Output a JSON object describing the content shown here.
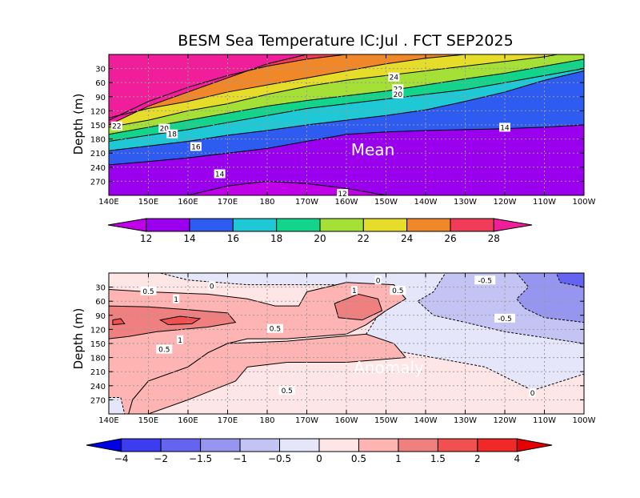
{
  "title": "BESM Sea Temperature  IC:Jul . FCT SEP2025",
  "chart_data": [
    {
      "type": "heatmap",
      "name": "Mean",
      "panel_label": "Mean",
      "ylabel": "Depth (m)",
      "xlabel": "",
      "x_tick_labels": [
        "140E",
        "150E",
        "160E",
        "170E",
        "180",
        "170W",
        "160W",
        "150W",
        "140W",
        "130W",
        "120W",
        "110W",
        "100W"
      ],
      "y_tick_labels": [
        "30",
        "60",
        "90",
        "120",
        "150",
        "180",
        "210",
        "240",
        "270"
      ],
      "xlim": [
        140,
        260
      ],
      "ylim": [
        300,
        0
      ],
      "colorbar": {
        "ticks": [
          "12",
          "14",
          "16",
          "18",
          "20",
          "22",
          "24",
          "26",
          "28"
        ],
        "levels": [
          12,
          14,
          16,
          18,
          20,
          22,
          24,
          26,
          28
        ],
        "colors": [
          "#c000e8",
          "#9b00ee",
          "#2f5cf0",
          "#1ec8d4",
          "#12d48a",
          "#a4e036",
          "#e6dc2a",
          "#f0882a",
          "#f03c58",
          "#f01e9b"
        ]
      },
      "contour_labels": [
        {
          "text": "24",
          "lon": 212,
          "depth": 48
        },
        {
          "text": "22",
          "lon": 213,
          "depth": 73
        },
        {
          "text": "20",
          "lon": 213,
          "depth": 84
        },
        {
          "text": "22",
          "lon": 142,
          "depth": 152
        },
        {
          "text": "20",
          "lon": 154,
          "depth": 157
        },
        {
          "text": "18",
          "lon": 156,
          "depth": 169
        },
        {
          "text": "16",
          "lon": 162,
          "depth": 196
        },
        {
          "text": "14",
          "lon": 168,
          "depth": 254
        },
        {
          "text": "14",
          "lon": 240,
          "depth": 155
        },
        {
          "text": "12",
          "lon": 199,
          "depth": 296
        }
      ],
      "bands": [
        {
          "temp": 28,
          "color": "#f01e9b",
          "depths": [
            150,
            110,
            80,
            50,
            20,
            0,
            -10,
            -10,
            -10,
            -10,
            -10,
            -10,
            -10
          ]
        },
        {
          "temp": 26,
          "color": "#f03c58",
          "depths": [
            140,
            100,
            70,
            45,
            25,
            10,
            0,
            -10,
            -10,
            -10,
            -10,
            -10,
            -10
          ]
        },
        {
          "temp": 24,
          "color": "#f0882a",
          "depths": [
            135,
            115,
            100,
            80,
            65,
            50,
            35,
            20,
            8,
            0,
            -10,
            -10,
            -10
          ]
        },
        {
          "temp": 22,
          "color": "#e6dc2a",
          "depths": [
            155,
            140,
            120,
            105,
            85,
            68,
            55,
            45,
            35,
            25,
            15,
            5,
            -10
          ]
        },
        {
          "temp": 20,
          "color": "#a4e036",
          "depths": [
            170,
            155,
            140,
            125,
            110,
            98,
            88,
            78,
            65,
            52,
            40,
            25,
            10
          ]
        },
        {
          "temp": 18,
          "color": "#12d48a",
          "depths": [
            185,
            172,
            160,
            145,
            130,
            115,
            105,
            95,
            85,
            75,
            60,
            45,
            30
          ]
        },
        {
          "temp": 16,
          "color": "#1ec8d4",
          "depths": [
            205,
            195,
            185,
            172,
            162,
            150,
            140,
            130,
            118,
            100,
            80,
            55,
            35
          ]
        },
        {
          "temp": 14,
          "color": "#2f5cf0",
          "depths": [
            235,
            228,
            220,
            210,
            200,
            185,
            170,
            165,
            162,
            160,
            158,
            155,
            150
          ]
        },
        {
          "temp": 12,
          "color": "#9b00ee",
          "depths": [
            300,
            300,
            300,
            280,
            270,
            275,
            285,
            300,
            300,
            300,
            300,
            300,
            300
          ]
        }
      ],
      "deepest_color": "#c000e8"
    },
    {
      "type": "heatmap",
      "name": "Anomaly",
      "panel_label": "Anomaly",
      "ylabel": "Depth (m)",
      "xlabel": "",
      "x_tick_labels": [
        "140E",
        "150E",
        "160E",
        "170E",
        "180",
        "170W",
        "160W",
        "150W",
        "140W",
        "130W",
        "120W",
        "110W",
        "100W"
      ],
      "y_tick_labels": [
        "30",
        "60",
        "90",
        "120",
        "150",
        "180",
        "210",
        "240",
        "270"
      ],
      "xlim": [
        140,
        260
      ],
      "ylim": [
        300,
        0
      ],
      "colorbar": {
        "ticks": [
          "−4",
          "−2",
          "−1.5",
          "−1",
          "−0.5",
          "0",
          "0.5",
          "1",
          "1.5",
          "2",
          "4"
        ],
        "levels": [
          -4,
          -2,
          -1.5,
          -1,
          -0.5,
          0,
          0.5,
          1,
          1.5,
          2,
          4
        ],
        "colors": [
          "#0000e6",
          "#3c3cf0",
          "#6464f0",
          "#9696f0",
          "#c4c4f4",
          "#e6e6fa",
          "#ffe6e6",
          "#ffb4b4",
          "#f08080",
          "#f05050",
          "#f02828",
          "#e60000"
        ]
      },
      "contour_labels": [
        {
          "text": "0",
          "lon": 208,
          "depth": 15
        },
        {
          "text": "0",
          "lon": 166,
          "depth": 27
        },
        {
          "text": "-0.5",
          "lon": 235,
          "depth": 15
        },
        {
          "text": "0.5",
          "lon": 150,
          "depth": 38
        },
        {
          "text": "1",
          "lon": 157,
          "depth": 55
        },
        {
          "text": "1",
          "lon": 202,
          "depth": 37
        },
        {
          "text": "0.5",
          "lon": 213,
          "depth": 37
        },
        {
          "text": "-0.5",
          "lon": 240,
          "depth": 96
        },
        {
          "text": "0.5",
          "lon": 182,
          "depth": 118
        },
        {
          "text": "1",
          "lon": 158,
          "depth": 142
        },
        {
          "text": "0.5",
          "lon": 154,
          "depth": 162
        },
        {
          "text": "0.5",
          "lon": 185,
          "depth": 250
        },
        {
          "text": "0",
          "lon": 247,
          "depth": 255
        }
      ],
      "regions": [
        {
          "value": 0.25,
          "color": "#ffe6e6",
          "poly": [
            [
              140,
              0
            ],
            [
              260,
              0
            ],
            [
              260,
              300
            ],
            [
              140,
              300
            ]
          ]
        },
        {
          "value": -0.25,
          "color": "#e6e6fa",
          "poly": [
            [
              153,
              0
            ],
            [
              260,
              0
            ],
            [
              260,
              215
            ],
            [
              247,
              250
            ],
            [
              235,
              200
            ],
            [
              222,
              180
            ],
            [
              212,
              165
            ],
            [
              205,
              130
            ],
            [
              208,
              90
            ],
            [
              210,
              40
            ],
            [
              200,
              25
            ],
            [
              175,
              25
            ],
            [
              160,
              15
            ]
          ]
        },
        {
          "value": -0.75,
          "color": "#c4c4f4",
          "poly": [
            [
              225,
              0
            ],
            [
              260,
              0
            ],
            [
              260,
              150
            ],
            [
              240,
              125
            ],
            [
              230,
              105
            ],
            [
              222,
              90
            ],
            [
              218,
              60
            ],
            [
              222,
              40
            ]
          ]
        },
        {
          "value": -1.25,
          "color": "#9696f0",
          "poly": [
            [
              243,
              0
            ],
            [
              260,
              0
            ],
            [
              260,
              105
            ],
            [
              250,
              95
            ],
            [
              245,
              75
            ],
            [
              243,
              55
            ],
            [
              246,
              30
            ]
          ]
        },
        {
          "value": -1.75,
          "color": "#6464f0",
          "poly": [
            [
              253,
              0
            ],
            [
              260,
              0
            ],
            [
              260,
              30
            ],
            [
              254,
              20
            ]
          ]
        },
        {
          "value": 0.75,
          "color": "#ffb4b4",
          "poly": [
            [
              140,
              35
            ],
            [
              150,
              40
            ],
            [
              165,
              45
            ],
            [
              175,
              55
            ],
            [
              182,
              70
            ],
            [
              188,
              70
            ],
            [
              190,
              40
            ],
            [
              200,
              20
            ],
            [
              212,
              25
            ],
            [
              215,
              55
            ],
            [
              210,
              80
            ],
            [
              205,
              110
            ],
            [
              200,
              130
            ],
            [
              185,
              140
            ],
            [
              175,
              140
            ],
            [
              170,
              150
            ],
            [
              165,
              170
            ],
            [
              160,
              200
            ],
            [
              150,
              230
            ],
            [
              146,
              270
            ],
            [
              145,
              300
            ],
            [
              140,
              300
            ]
          ]
        },
        {
          "value": 0.75,
          "color": "#ffb4b4",
          "poly": [
            [
              170,
              150
            ],
            [
              185,
              145
            ],
            [
              205,
              130
            ],
            [
              212,
              150
            ],
            [
              215,
              180
            ],
            [
              200,
              190
            ],
            [
              185,
              190
            ],
            [
              175,
              200
            ],
            [
              172,
              230
            ],
            [
              160,
              270
            ],
            [
              150,
              300
            ],
            [
              145,
              300
            ],
            [
              146,
              270
            ],
            [
              150,
              230
            ],
            [
              160,
              200
            ],
            [
              165,
              170
            ]
          ]
        },
        {
          "value": 1.25,
          "color": "#f08080",
          "poly": [
            [
              140,
              70
            ],
            [
              150,
              72
            ],
            [
              160,
              78
            ],
            [
              170,
              85
            ],
            [
              172,
              105
            ],
            [
              165,
              115
            ],
            [
              152,
              125
            ],
            [
              145,
              135
            ],
            [
              140,
              140
            ]
          ]
        },
        {
          "value": 1.25,
          "color": "#f08080",
          "poly": [
            [
              197,
              65
            ],
            [
              203,
              45
            ],
            [
              208,
              55
            ],
            [
              209,
              80
            ],
            [
              204,
              100
            ],
            [
              198,
              95
            ]
          ]
        },
        {
          "value": 1.75,
          "color": "#f05050",
          "poly": [
            [
              153,
              100
            ],
            [
              158,
              92
            ],
            [
              163,
              97
            ],
            [
              161,
              108
            ],
            [
              155,
              110
            ]
          ]
        },
        {
          "value": 1.75,
          "color": "#f05050",
          "poly": [
            [
              141,
              100
            ],
            [
              143,
              97
            ],
            [
              144,
              108
            ],
            [
              141,
              110
            ]
          ]
        },
        {
          "value": -0.25,
          "color": "#e6e6fa",
          "poly": [
            [
              140,
              265
            ],
            [
              143,
              265
            ],
            [
              144,
              300
            ],
            [
              140,
              300
            ]
          ]
        }
      ]
    }
  ]
}
